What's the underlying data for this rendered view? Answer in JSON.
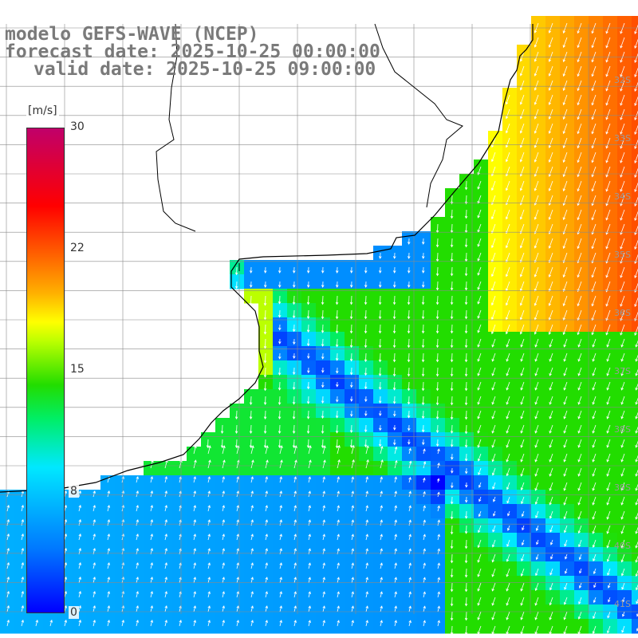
{
  "title": {
    "line1": "modelo GEFS-WAVE (NCEP)",
    "line2": "forecast date: 2025-10-25 00:00:00",
    "line3": "valid date: 2025-10-25 09:00:00"
  },
  "legend": {
    "units": "[m/s]",
    "ticks": [
      {
        "label": "30",
        "value": 30
      },
      {
        "label": "22",
        "value": 22
      },
      {
        "label": "15",
        "value": 15
      },
      {
        "label": "8",
        "value": 8
      },
      {
        "label": "0",
        "value": 0
      }
    ],
    "range": [
      0,
      30
    ]
  },
  "lat_labels": [
    "32S",
    "33S",
    "34S",
    "35S",
    "36S",
    "37S",
    "38S",
    "39S",
    "40S",
    "41S"
  ],
  "colors": {
    "land": "#ffffff",
    "gridline": "#8a8a8a",
    "coastline": "#000000",
    "arrow": "#ffffff",
    "title_text": "#7a7a7a"
  },
  "map": {
    "variable": "wind speed",
    "units": "m/s",
    "arrows": "white direction arrows"
  }
}
